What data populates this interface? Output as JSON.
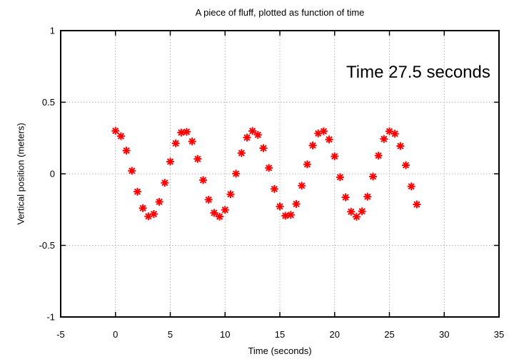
{
  "chart_data": {
    "type": "scatter",
    "title": "A piece of fluff, plotted as function of time",
    "xlabel": "Time (seconds)",
    "ylabel": "Vertical position (meters)",
    "annotation": "Time 27.5 seconds",
    "xlim": [
      -5,
      35
    ],
    "ylim": [
      -1,
      1
    ],
    "xticks": [
      -5,
      0,
      5,
      10,
      15,
      20,
      25,
      30,
      35
    ],
    "xtick_labels": [
      "-5",
      "0",
      "5",
      "10",
      "15",
      "20",
      "25",
      "30",
      "35"
    ],
    "yticks": [
      -1,
      -0.5,
      0,
      0.5,
      1
    ],
    "ytick_labels": [
      "-1",
      "-0.5",
      "0",
      "0.5",
      "1"
    ],
    "grid": true,
    "legend": "none",
    "marker": "asterisk",
    "marker_color": "#ff0000",
    "grid_color": "#b0b0b0",
    "axis_color": "#000000",
    "background_color": "#ffffff",
    "series": [
      {
        "name": "fluff vertical position",
        "x": [
          0,
          0.5,
          1,
          1.5,
          2,
          2.5,
          3,
          3.5,
          4,
          4.5,
          5,
          5.5,
          6,
          6.5,
          7,
          7.5,
          8,
          8.5,
          9,
          9.5,
          10,
          10.5,
          11,
          11.5,
          12,
          12.5,
          13,
          13.5,
          14,
          14.5,
          15,
          15.5,
          16,
          16.5,
          17,
          17.5,
          18,
          18.5,
          19,
          19.5,
          20,
          20.5,
          21,
          21.5,
          22,
          22.5,
          23,
          23.5,
          24,
          24.5,
          25,
          25.5,
          26,
          26.5,
          27,
          27.5
        ],
        "y": [
          0.3,
          0.263,
          0.162,
          0.021,
          -0.125,
          -0.24,
          -0.297,
          -0.281,
          -0.196,
          -0.063,
          0.085,
          0.213,
          0.288,
          0.293,
          0.226,
          0.104,
          -0.044,
          -0.181,
          -0.273,
          -0.299,
          -0.252,
          -0.143,
          0.001,
          0.145,
          0.253,
          0.299,
          0.272,
          0.179,
          0.041,
          -0.106,
          -0.228,
          -0.293,
          -0.287,
          -0.211,
          -0.083,
          0.066,
          0.198,
          0.282,
          0.297,
          0.24,
          0.122,
          -0.024,
          -0.164,
          -0.265,
          -0.3,
          -0.262,
          -0.16,
          -0.019,
          0.127,
          0.243,
          0.297,
          0.28,
          0.194,
          0.06,
          -0.088,
          -0.214
        ]
      }
    ]
  }
}
